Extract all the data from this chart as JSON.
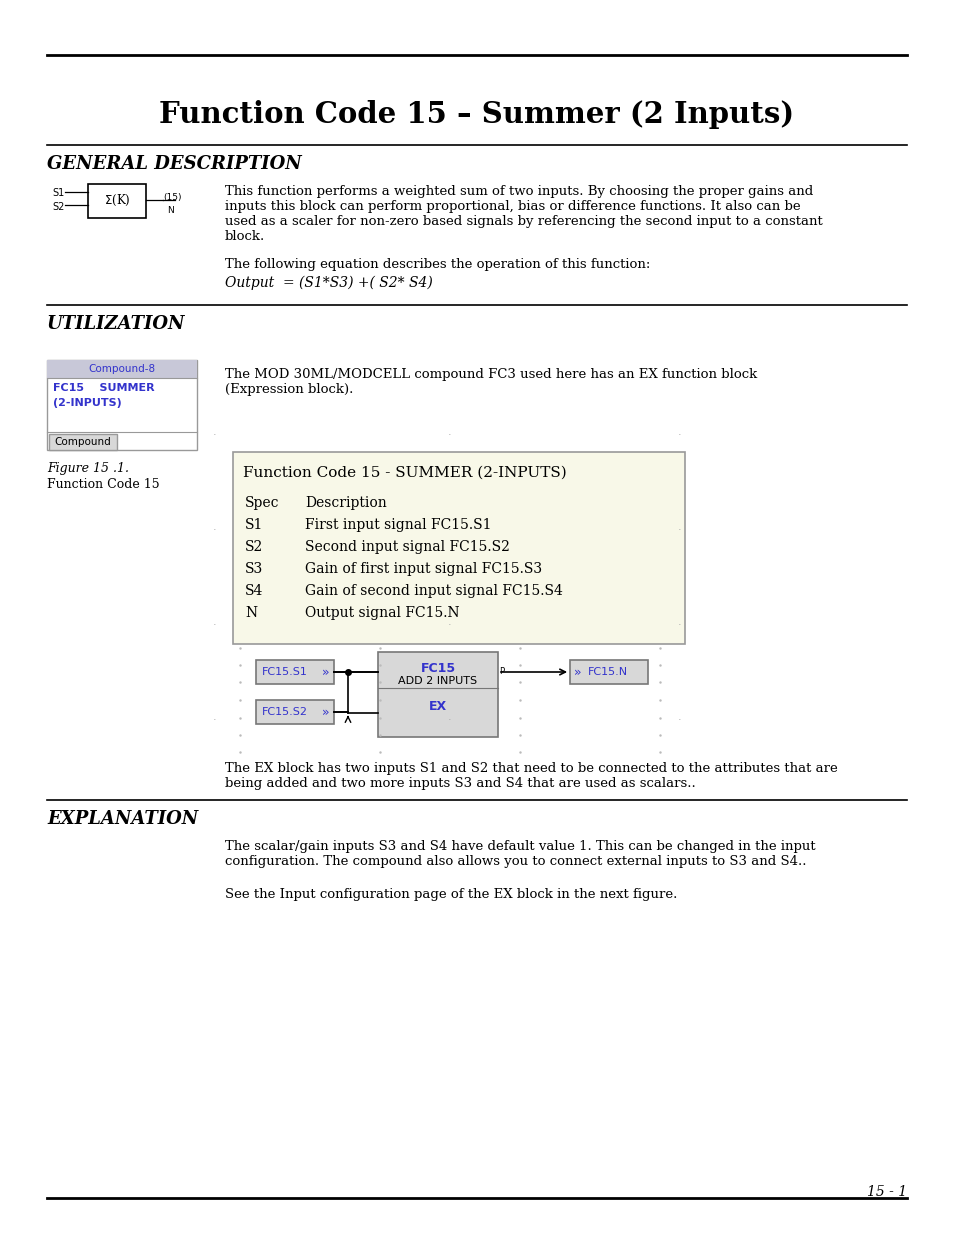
{
  "title": "Function Code 15 – Summer (2 Inputs)",
  "section1_heading": "GENERAL DESCRIPTION",
  "section1_body1a": "This function performs a weighted sum of two inputs. By choosing the proper gains and",
  "section1_body1b": "inputs this block can perform proportional, bias or difference functions. It also can be",
  "section1_body1c": "used as a scaler for non-zero based signals by referencing the second input to a constant",
  "section1_body1d": "block.",
  "section1_body2": "The following equation describes the operation of this function:",
  "section1_equation": "Output  = (S1*S3) +( S2* S4)",
  "section2_heading": "UTILIZATION",
  "compound_title": "Compound-8",
  "compound_row1": "FC15    SUMMER",
  "compound_row2": "(2-INPUTS)",
  "compound_tab": "Compound",
  "utilization_text1": "The MOD 30ML/MODCELL compound FC3 used here has an EX function block",
  "utilization_text2": "(Expression block).",
  "fig_label": "Figure 15 .1.",
  "fig_caption": "Function Code 15",
  "fc_box_title": "Function Code 15 - SUMMER (2-INPUTS)",
  "fc_table": [
    [
      "Spec",
      "Description"
    ],
    [
      "S1",
      "First input signal FC15.S1"
    ],
    [
      "S2",
      "Second input signal FC15.S2"
    ],
    [
      "S3",
      "Gain of first input signal FC15.S3"
    ],
    [
      "S4",
      "Gain of second input signal FC15.S4"
    ],
    [
      "N",
      "Output signal FC15.N"
    ]
  ],
  "ex_block_text1": "The EX block has two inputs S1 and S2 that need to be connected to the attributes that are",
  "ex_block_text2": "being added and two more inputs S3 and S4 that are used as scalars..",
  "section3_heading": "EXPLANATION",
  "explanation_body1a": "The scalar/gain inputs S3 and S4 have default value 1. This can be changed in the input",
  "explanation_body1b": "configuration. The compound also allows you to connect external inputs to S3 and S4..",
  "explanation_body2": "See the Input configuration page of the EX block in the next figure.",
  "page_number": "15 - 1",
  "bg_color": "#ffffff",
  "text_color": "#000000",
  "blue_color": "#3333cc",
  "fc_box_bg": "#f8f8e8",
  "diagram_bg": "#d8d8d8",
  "compound_header_bg": "#c8c8d8",
  "compound_tab_bg": "#d8d8d8"
}
